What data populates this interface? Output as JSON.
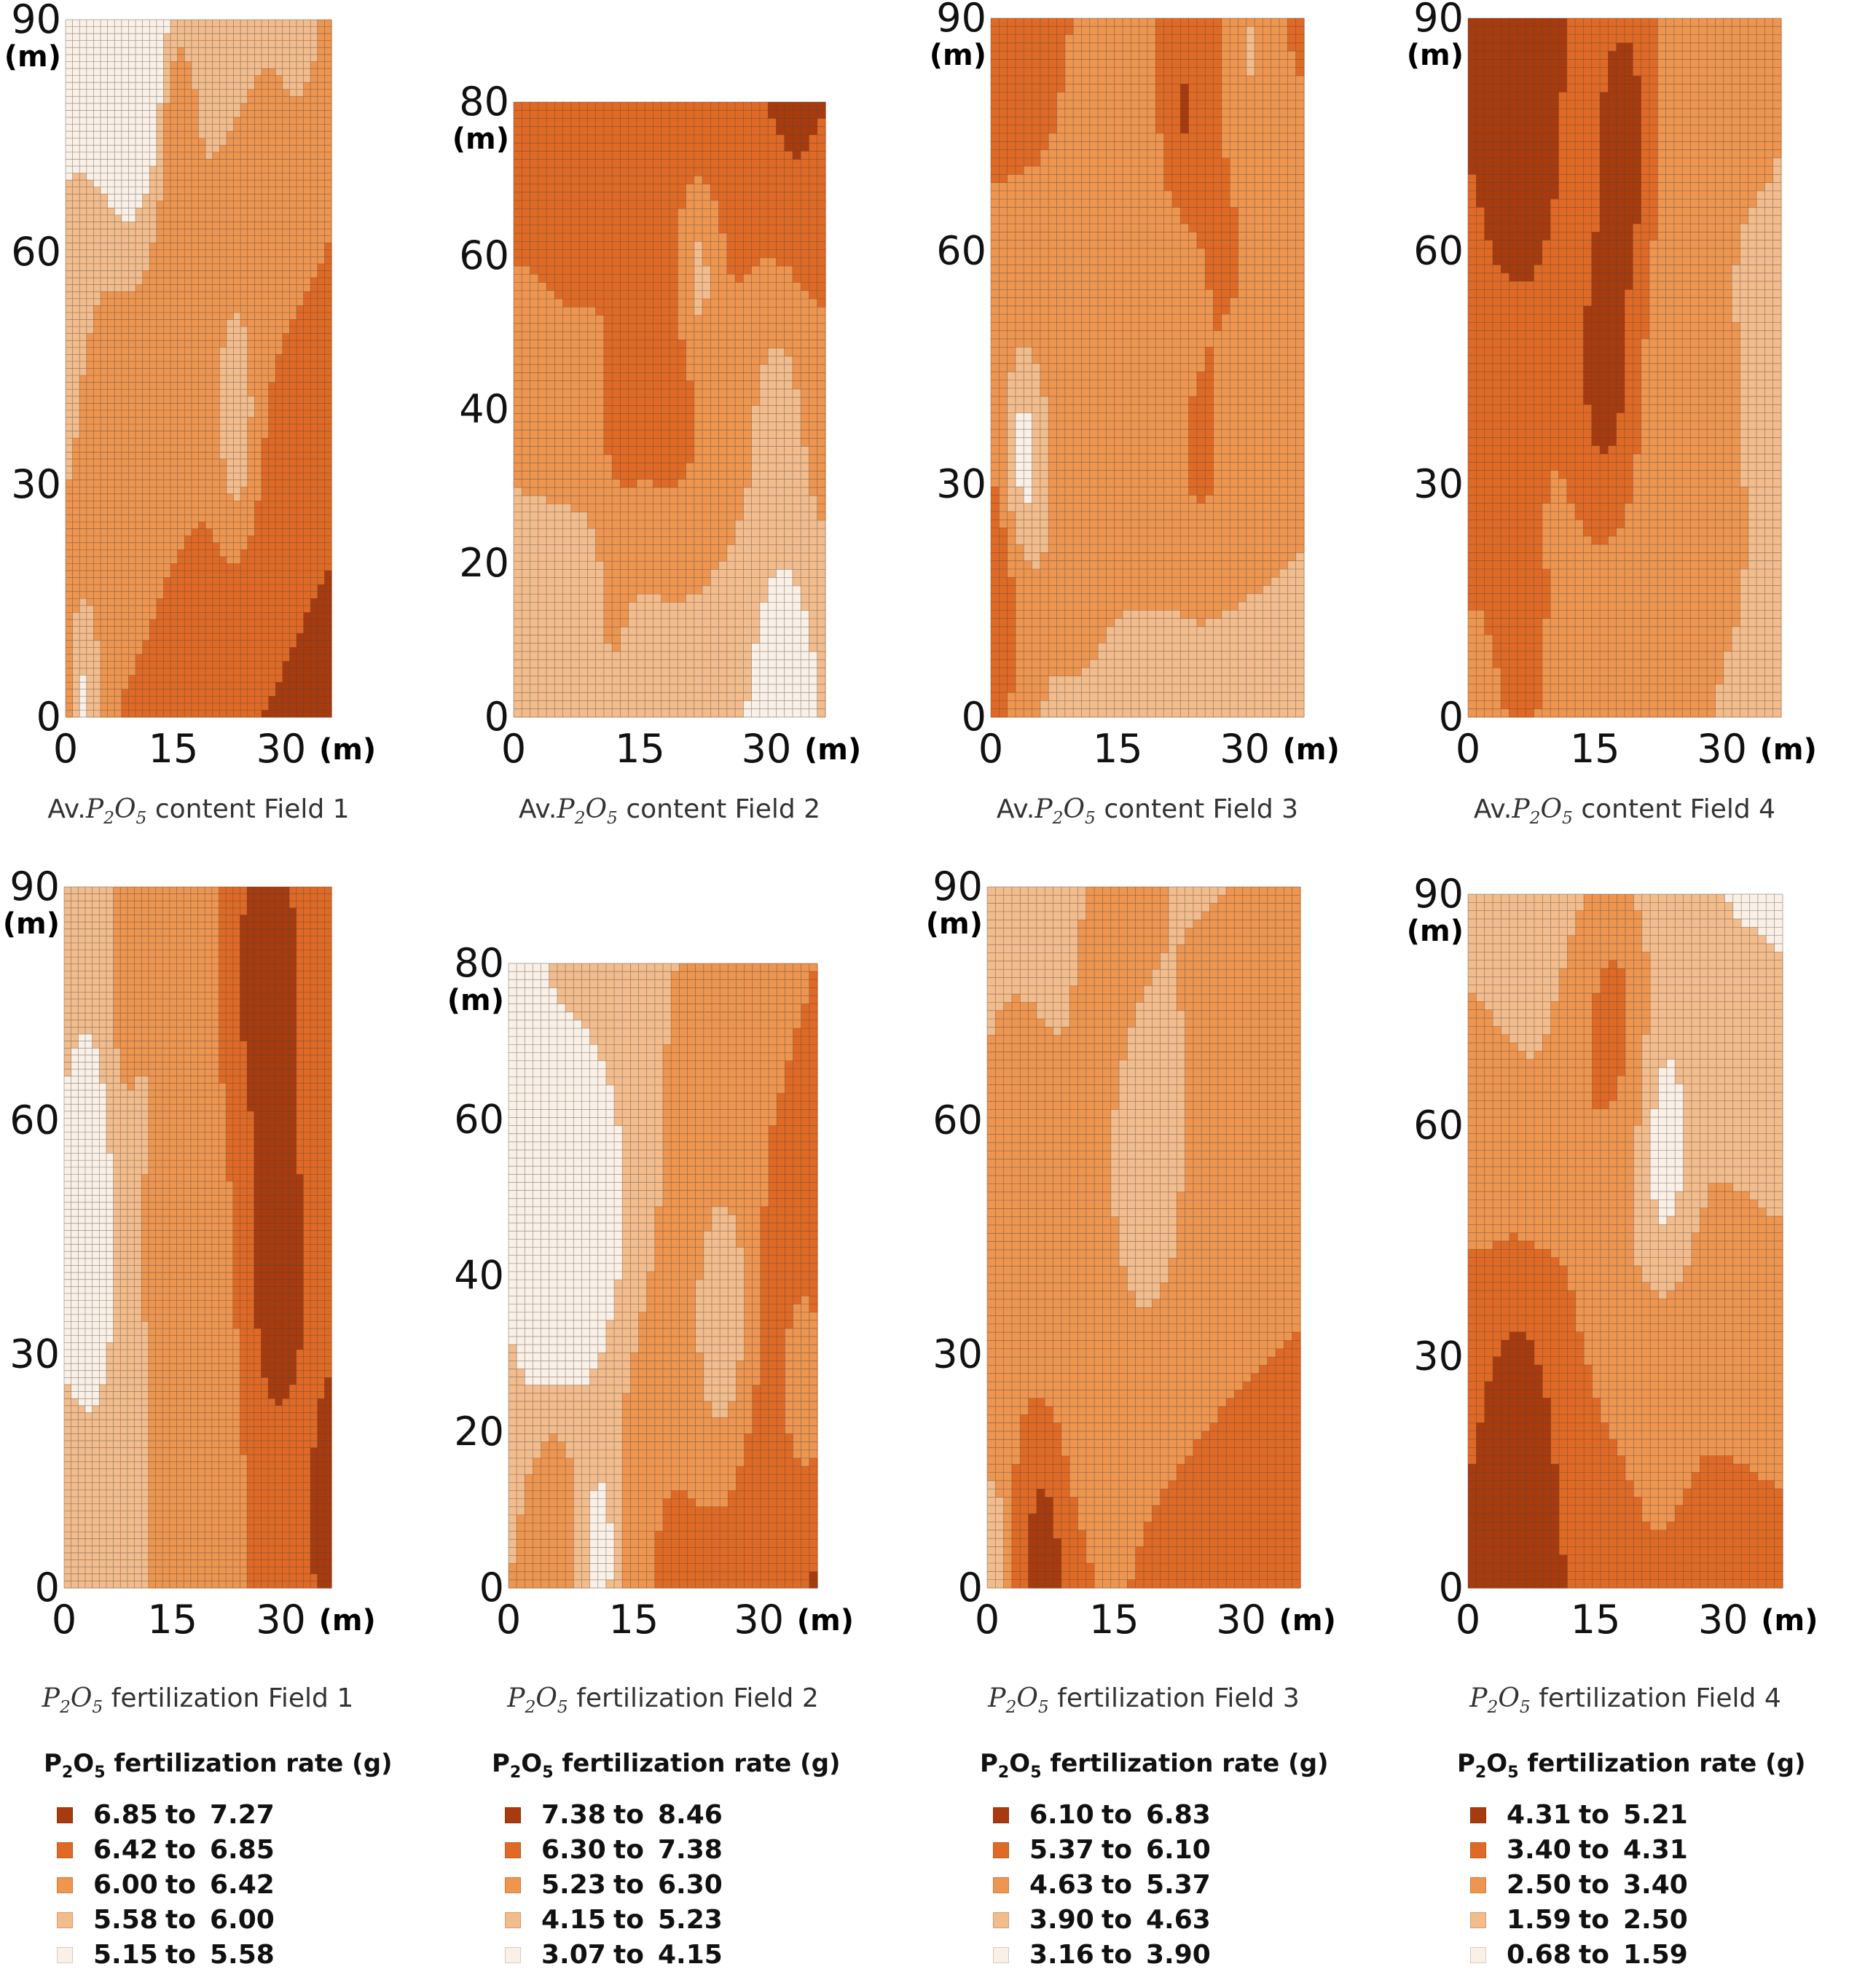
{
  "x_unit": "(m)",
  "y_unit": "(m)",
  "to_word": "to",
  "palette": [
    "#FAF0E6",
    "#F2BC8C",
    "#EE9550",
    "#E06A25",
    "#A83B0E"
  ],
  "grid_line_color": "#444444",
  "panels": [
    {
      "caption_prefix": "Av.",
      "caption_symbol": "P2O5",
      "caption_suffix": "content Field 1",
      "x_ticks": [
        0,
        15,
        30
      ],
      "y_ticks": [
        0,
        30,
        60,
        90
      ],
      "y_max": 90
    },
    {
      "caption_prefix": "Av.",
      "caption_symbol": "P2O5",
      "caption_suffix": "content Field 2",
      "x_ticks": [
        0,
        15,
        30
      ],
      "y_ticks": [
        0,
        20,
        40,
        60,
        80
      ],
      "y_max": 80
    },
    {
      "caption_prefix": "Av.",
      "caption_symbol": "P2O5",
      "caption_suffix": "content Field 3",
      "x_ticks": [
        0,
        15,
        30
      ],
      "y_ticks": [
        0,
        30,
        60,
        90
      ],
      "y_max": 90
    },
    {
      "caption_prefix": "Av.",
      "caption_symbol": "P2O5",
      "caption_suffix": "content Field 4",
      "x_ticks": [
        0,
        15,
        30
      ],
      "y_ticks": [
        0,
        30,
        60,
        90
      ],
      "y_max": 90
    },
    {
      "caption_prefix": "",
      "caption_symbol": "P2O5",
      "caption_suffix": "fertilization Field 1",
      "x_ticks": [
        0,
        15,
        30
      ],
      "y_ticks": [
        0,
        30,
        60,
        90
      ],
      "y_max": 90
    },
    {
      "caption_prefix": "",
      "caption_symbol": "P2O5",
      "caption_suffix": "fertilization Field 2",
      "x_ticks": [
        0,
        15,
        30
      ],
      "y_ticks": [
        0,
        20,
        40,
        60,
        80
      ],
      "y_max": 80
    },
    {
      "caption_prefix": "",
      "caption_symbol": "P2O5",
      "caption_suffix": "fertilization Field 3",
      "x_ticks": [
        0,
        15,
        30
      ],
      "y_ticks": [
        0,
        30,
        60,
        90
      ],
      "y_max": 90
    },
    {
      "caption_prefix": "",
      "caption_symbol": "P2O5",
      "caption_suffix": "fertilization Field 4",
      "x_ticks": [
        0,
        15,
        30
      ],
      "y_ticks": [
        0,
        30,
        60,
        90
      ],
      "y_max": 90
    }
  ],
  "legends": [
    {
      "title": "P2O5 fertilization rate (g)",
      "ranges": [
        [
          "6.85",
          "7.27"
        ],
        [
          "6.42",
          "6.85"
        ],
        [
          "6.00",
          "6.42"
        ],
        [
          "5.58",
          "6.00"
        ],
        [
          "5.15",
          "5.58"
        ]
      ]
    },
    {
      "title": "P2O5 fertilization rate (g)",
      "ranges": [
        [
          "7.38",
          "8.46"
        ],
        [
          "6.30",
          "7.38"
        ],
        [
          "5.23",
          "6.30"
        ],
        [
          "4.15",
          "5.23"
        ],
        [
          "3.07",
          "4.15"
        ]
      ]
    },
    {
      "title": "P2O5 fertilization rate (g)",
      "ranges": [
        [
          "6.10",
          "6.83"
        ],
        [
          "5.37",
          "6.10"
        ],
        [
          "4.63",
          "5.37"
        ],
        [
          "3.90",
          "4.63"
        ],
        [
          "3.16",
          "3.90"
        ]
      ]
    },
    {
      "title": "P2O5 fertilization rate (g)",
      "ranges": [
        [
          "4.31",
          "5.21"
        ],
        [
          "3.40",
          "4.31"
        ],
        [
          "2.50",
          "3.40"
        ],
        [
          "1.59",
          "2.50"
        ],
        [
          "0.68",
          "1.59"
        ]
      ]
    }
  ]
}
